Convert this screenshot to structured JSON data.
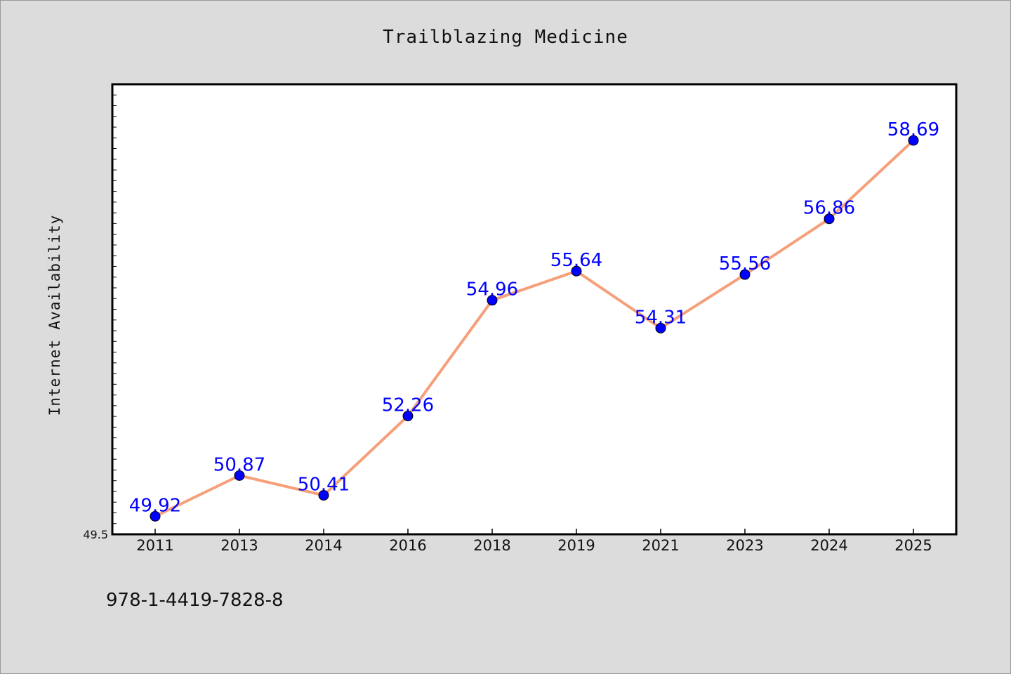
{
  "footer": {
    "isbn": "978-1-4419-7828-8"
  },
  "colors": {
    "background": "#dcdcdc",
    "plot_background": "#ffffff",
    "line": "#f5a07a",
    "marker": "#0000ff",
    "data_label": "#0000ff"
  },
  "chart_data": {
    "type": "line",
    "title": "Trailblazing Medicine",
    "xlabel": "",
    "ylabel": "Internet Availability",
    "categories": [
      "2011",
      "2013",
      "2014",
      "2016",
      "2018",
      "2019",
      "2021",
      "2023",
      "2024",
      "2025"
    ],
    "series": [
      {
        "values": [
          49.92,
          50.87,
          50.41,
          52.26,
          54.96,
          55.64,
          54.31,
          55.56,
          56.86,
          58.69
        ]
      }
    ],
    "data_labels": [
      "49.92",
      "50.87",
      "50.41",
      "52.26",
      "54.96",
      "55.64",
      "54.31",
      "55.56",
      "56.86",
      "58.69"
    ],
    "y_tick_labels": [
      "49.5"
    ],
    "ylim": [
      49.5,
      60.0
    ],
    "grid": false,
    "legend": "none"
  }
}
